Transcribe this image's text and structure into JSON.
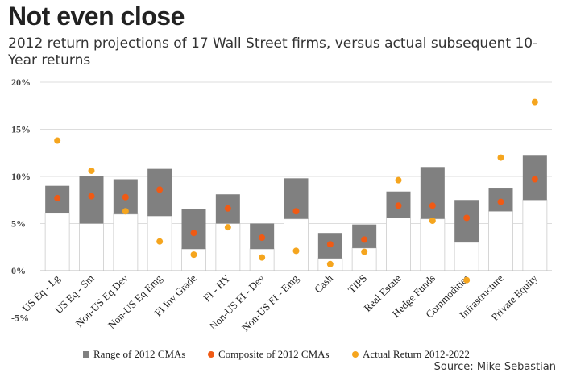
{
  "title": "Not even close",
  "subtitle": "2012 return projections of 17 Wall Street firms, versus actual subsequent 10-Year returns",
  "source": "Source: Mike Sebastian",
  "colors": {
    "range": "#808080",
    "composite": "#f05a14",
    "actual": "#f5a51e",
    "grid": "#dddddd"
  },
  "chart_data": {
    "type": "bar",
    "categories": [
      "US Eq - Lg",
      "US Eq - Sm",
      "Non-US Eq Dev",
      "Non-US Eq Emg",
      "FI Inv Grade",
      "FI - HY",
      "Non-US FI - Dev",
      "Non-US FI - Emg",
      "Cash",
      "TIPS",
      "Real Estate",
      "Hedge Funds",
      "Commodities",
      "Infrastructure",
      "Private Equity"
    ],
    "yticks": [
      "20%",
      "15%",
      "10%",
      "5%",
      "0%",
      "-5%"
    ],
    "ylim": [
      -5,
      20
    ],
    "grid": true,
    "legend_position": "bottom",
    "series": [
      {
        "name": "Range of 2012 CMAs",
        "kind": "range",
        "low": [
          6.1,
          5.0,
          6.0,
          5.8,
          2.3,
          5.0,
          2.3,
          5.5,
          1.3,
          2.4,
          5.6,
          5.5,
          3.0,
          6.3,
          7.5
        ],
        "high": [
          9.0,
          10.0,
          9.7,
          10.8,
          6.5,
          8.1,
          5.0,
          9.8,
          4.0,
          4.9,
          8.4,
          11.0,
          7.5,
          8.8,
          12.2
        ]
      },
      {
        "name": "Composite of 2012 CMAs",
        "kind": "point",
        "values": [
          7.7,
          7.9,
          7.8,
          8.6,
          4.0,
          6.6,
          3.5,
          6.3,
          2.8,
          3.3,
          6.9,
          6.9,
          5.6,
          7.3,
          9.7
        ]
      },
      {
        "name": "Actual Return 2012-2022",
        "kind": "point",
        "values": [
          13.8,
          10.6,
          6.3,
          3.1,
          1.7,
          4.6,
          1.4,
          2.1,
          0.7,
          2.0,
          9.6,
          5.3,
          -1.0,
          12.0,
          17.9
        ]
      }
    ]
  }
}
